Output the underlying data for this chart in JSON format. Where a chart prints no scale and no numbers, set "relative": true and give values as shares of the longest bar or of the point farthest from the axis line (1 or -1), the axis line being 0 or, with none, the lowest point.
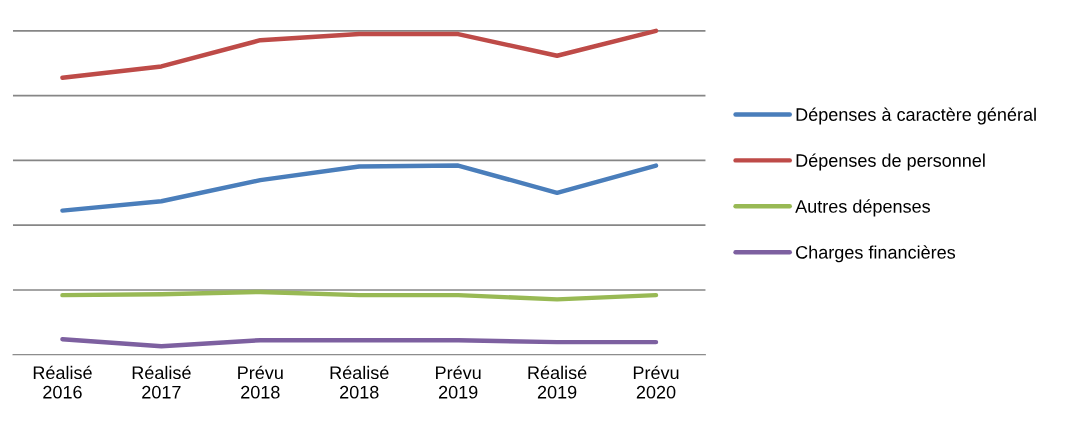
{
  "chart_data": {
    "type": "line",
    "relative": true,
    "grid": "y",
    "legend": "right",
    "line_style": "solid",
    "marker": "none",
    "categories": [
      "Réalisé\n2016",
      "Réalisé\n2017",
      "Prévu\n2018",
      "Réalisé\n2018",
      "Prévu\n2019",
      "Réalisé\n2019",
      "Prévu\n2020"
    ],
    "series": [
      {
        "name": "Dépenses à caractère général",
        "color": "#4a7ebb",
        "values": [
          0.445,
          0.474,
          0.539,
          0.581,
          0.584,
          0.5,
          0.584
        ]
      },
      {
        "name": "Dépenses de personnel",
        "color": "#be4b48",
        "values": [
          0.855,
          0.89,
          0.971,
          0.99,
          0.99,
          0.923,
          1
        ]
      },
      {
        "name": "Autres dépenses",
        "color": "#98b954",
        "values": [
          0.184,
          0.187,
          0.194,
          0.184,
          0.184,
          0.171,
          0.184
        ]
      },
      {
        "name": "Charges financières",
        "color": "#7d60a0",
        "values": [
          0.048,
          0.026,
          0.045,
          0.045,
          0.045,
          0.039,
          0.039
        ]
      }
    ]
  }
}
